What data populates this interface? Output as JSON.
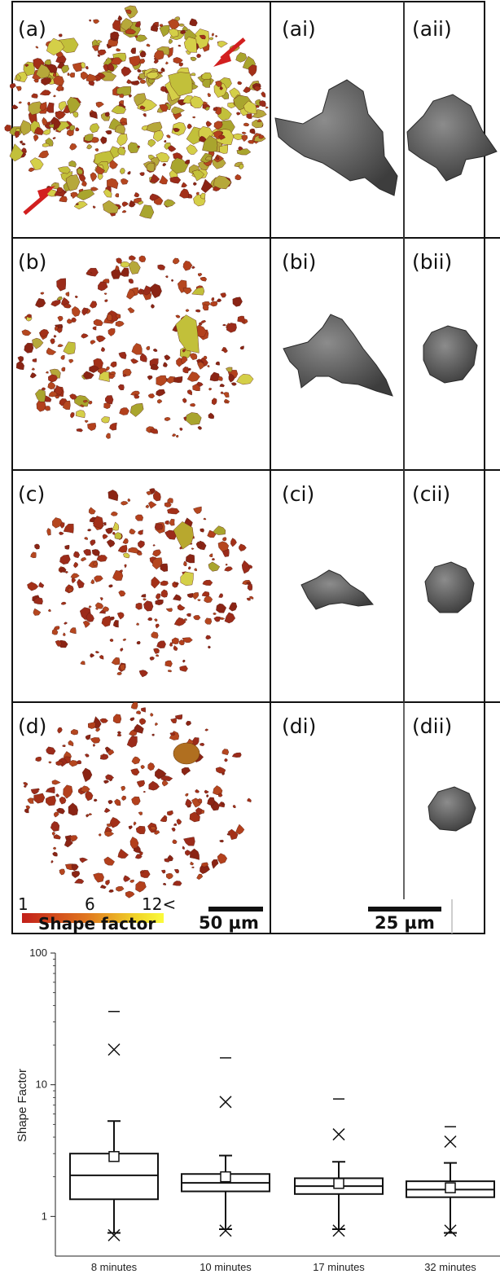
{
  "panels": {
    "a": "(a)",
    "ai": "(ai)",
    "aii": "(aii)",
    "b": "(b)",
    "bi": "(bi)",
    "bii": "(bii)",
    "c": "(c)",
    "ci": "(ci)",
    "cii": "(cii)",
    "d": "(d)",
    "di": "(di)",
    "dii": "(dii)"
  },
  "colorbar": {
    "tick_1": "1",
    "tick_6": "6",
    "tick_12": "12<",
    "title": "Shape factor",
    "colors": [
      "#c21f1a",
      "#e0751f",
      "#f0d229",
      "#fbfb3c"
    ]
  },
  "scalebars": {
    "left": "50 µm",
    "right": "25 µm"
  },
  "particle_colors": {
    "red": "#9b2b1a",
    "olive": "#c2c03a",
    "grey": "#5e5e5e"
  },
  "chart_data": {
    "type": "box",
    "title": "",
    "xlabel": "",
    "ylabel": "Shape Factor",
    "yscale": "log",
    "ylim": [
      0.5,
      100
    ],
    "yticks": [
      1,
      10,
      100
    ],
    "ytick_labels": [
      "1",
      "10",
      "100"
    ],
    "categories": [
      "8 minutes",
      "10 minutes",
      "17 minutes",
      "32 minutes"
    ],
    "boxes": [
      {
        "whisker_low": 0.75,
        "q1": 1.35,
        "median": 2.05,
        "q3": 3.0,
        "whisker_high": 5.3,
        "mean": 2.85,
        "min_x": 0.72,
        "max_x": 18.5,
        "max_dash": 36
      },
      {
        "whisker_low": 0.8,
        "q1": 1.55,
        "median": 1.8,
        "q3": 2.1,
        "whisker_high": 2.9,
        "mean": 2.0,
        "min_x": 0.78,
        "max_x": 7.4,
        "max_dash": 16
      },
      {
        "whisker_low": 0.8,
        "q1": 1.48,
        "median": 1.7,
        "q3": 1.95,
        "whisker_high": 2.6,
        "mean": 1.78,
        "min_x": 0.78,
        "max_x": 4.2,
        "max_dash": 7.8
      },
      {
        "whisker_low": 0.75,
        "q1": 1.4,
        "median": 1.6,
        "q3": 1.85,
        "whisker_high": 2.55,
        "mean": 1.65,
        "min_x": 0.78,
        "max_x": 3.7,
        "max_dash": 4.8
      }
    ]
  }
}
